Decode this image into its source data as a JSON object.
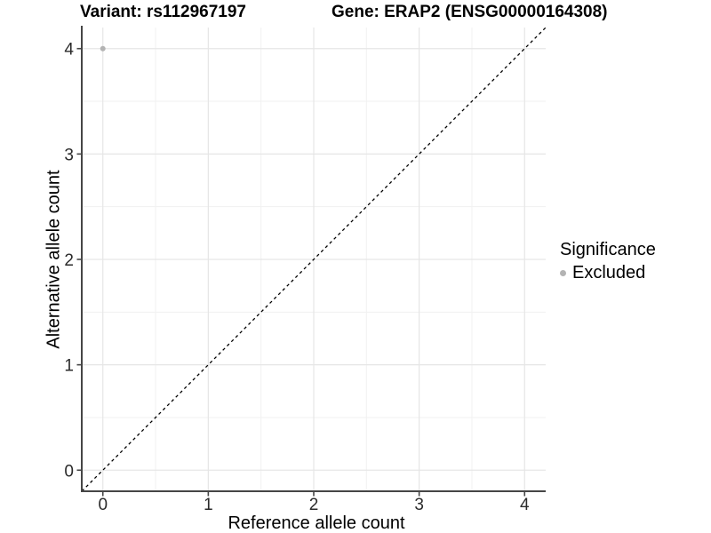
{
  "titles": {
    "variant": "Variant: rs112967197",
    "gene": "Gene: ERAP2 (ENSG00000164308)"
  },
  "axes": {
    "x_label": "Reference allele count",
    "y_label": "Alternative allele count"
  },
  "legend": {
    "title": "Significance",
    "entries": [
      {
        "label": "Excluded",
        "color": "#b3b3b3"
      }
    ]
  },
  "style": {
    "background_color": "#ffffff",
    "major_grid_color": "#e6e6e6",
    "minor_grid_color": "#f1f1f1",
    "axis_line_color": "#464646",
    "tick_color": "#464646",
    "tick_label_color": "#2b2b2b",
    "reference_line_color": "#000000",
    "point_color": "#b3b3b3"
  },
  "chart_data": {
    "type": "scatter",
    "title": "Variant: rs112967197 | Gene: ERAP2 (ENSG00000164308)",
    "xlabel": "Reference allele count",
    "ylabel": "Alternative allele count",
    "xlim": [
      -0.2,
      4.2
    ],
    "ylim": [
      -0.2,
      4.2
    ],
    "x_ticks": [
      0,
      1,
      2,
      3,
      4
    ],
    "y_ticks": [
      0,
      1,
      2,
      3,
      4
    ],
    "minor_grid_interval": 0.5,
    "grid": true,
    "legend_position": "right",
    "legend_title": "Significance",
    "series": [
      {
        "name": "Excluded",
        "color": "#b3b3b3",
        "points": [
          {
            "x": 0,
            "y": 4
          }
        ]
      }
    ],
    "reference_line": {
      "slope": 1,
      "intercept": 0,
      "style": "dashed",
      "color": "#000000"
    }
  }
}
